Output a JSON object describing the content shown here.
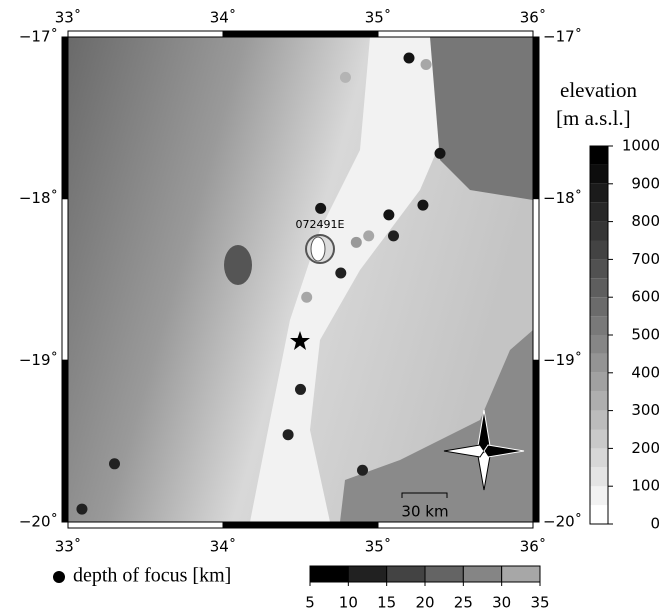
{
  "map": {
    "lon_ticks": [
      {
        "value": 33,
        "label": "33˚"
      },
      {
        "value": 34,
        "label": "34˚"
      },
      {
        "value": 35,
        "label": "35˚"
      },
      {
        "value": 36,
        "label": "36˚"
      }
    ],
    "lat_ticks": [
      {
        "value": -17,
        "label": "−17˚"
      },
      {
        "value": -18,
        "label": "−18˚"
      },
      {
        "value": -19,
        "label": "−19˚"
      },
      {
        "value": -20,
        "label": "−20˚"
      }
    ],
    "elevation_title": "elevation",
    "elevation_unit": "[m a.s.l.]",
    "elevation_ticks": [
      0,
      100,
      200,
      300,
      400,
      500,
      600,
      700,
      800,
      900,
      1000
    ],
    "depth_label": "depth of focus [km]",
    "depth_ticks": [
      5,
      10,
      15,
      20,
      25,
      30,
      35
    ],
    "scale_bar": "30 km",
    "mechanism_label": "072491E",
    "events": [
      {
        "lon": 35.2,
        "lat": -17.13,
        "depth": 8
      },
      {
        "lon": 35.31,
        "lat": -17.17,
        "depth": 30
      },
      {
        "lon": 34.79,
        "lat": -17.25,
        "depth": 32
      },
      {
        "lon": 35.4,
        "lat": -17.72,
        "depth": 8
      },
      {
        "lon": 34.63,
        "lat": -18.06,
        "depth": 8
      },
      {
        "lon": 35.29,
        "lat": -18.04,
        "depth": 8
      },
      {
        "lon": 35.07,
        "lat": -18.1,
        "depth": 8
      },
      {
        "lon": 35.1,
        "lat": -18.23,
        "depth": 10
      },
      {
        "lon": 34.86,
        "lat": -18.27,
        "depth": 28
      },
      {
        "lon": 34.94,
        "lat": -18.23,
        "depth": 30
      },
      {
        "lon": 34.76,
        "lat": -18.46,
        "depth": 10
      },
      {
        "lon": 34.54,
        "lat": -18.61,
        "depth": 30
      },
      {
        "lon": 34.5,
        "lat": -19.18,
        "depth": 10
      },
      {
        "lon": 34.42,
        "lat": -19.46,
        "depth": 10
      },
      {
        "lon": 34.9,
        "lat": -19.68,
        "depth": 10
      },
      {
        "lon": 33.3,
        "lat": -19.64,
        "depth": 10
      },
      {
        "lon": 33.09,
        "lat": -19.92,
        "depth": 10
      }
    ]
  }
}
